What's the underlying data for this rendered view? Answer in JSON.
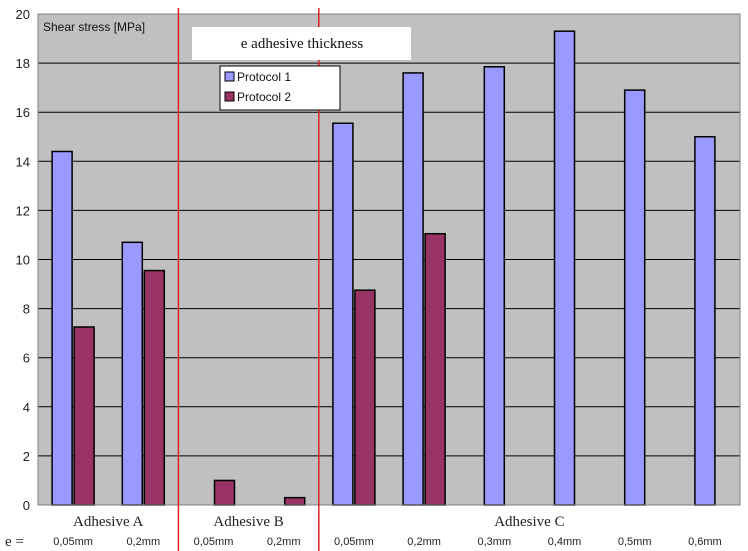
{
  "chart_data": {
    "type": "bar",
    "title": "e adhesive thickness",
    "ylabel": "Shear stress [MPa]",
    "xlabel": "",
    "ylim": [
      0,
      20
    ],
    "yticks": [
      0,
      2,
      4,
      6,
      8,
      10,
      12,
      14,
      16,
      18,
      20
    ],
    "grid": true,
    "legend_position": "top-left",
    "e_label": "e =",
    "categories": [
      "0,05mm",
      "0,2mm",
      "0,05mm",
      "0,2mm",
      "0,05mm",
      "0,2mm",
      "0,3mm",
      "0,4mm",
      "0,5mm",
      "0,6mm"
    ],
    "groups": [
      {
        "name": "Adhesive A",
        "categories": [
          0,
          1
        ]
      },
      {
        "name": "Adhesive B",
        "categories": [
          2,
          3
        ]
      },
      {
        "name": "Adhesive C",
        "categories": [
          4,
          5,
          6,
          7,
          8,
          9
        ]
      }
    ],
    "series": [
      {
        "name": "Protocol  1",
        "color": "#9999ff",
        "values": [
          14.4,
          10.7,
          null,
          null,
          15.55,
          17.6,
          17.85,
          19.3,
          16.9,
          15.0
        ]
      },
      {
        "name": "Protocol  2",
        "color": "#993366",
        "values": [
          7.25,
          9.55,
          1.0,
          0.3,
          8.75,
          11.05,
          null,
          null,
          null,
          null
        ]
      }
    ]
  }
}
